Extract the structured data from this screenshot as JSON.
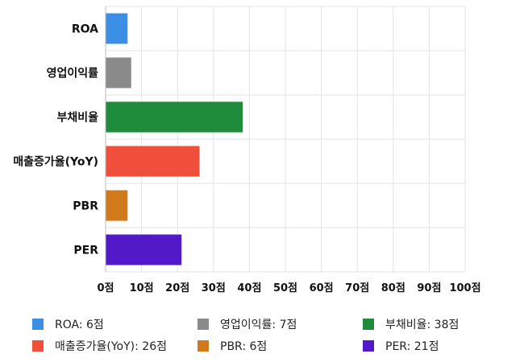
{
  "chart_data": {
    "type": "bar",
    "orientation": "horizontal",
    "categories": [
      "ROA",
      "영업이익률",
      "부채비율",
      "매출증가율(YoY)",
      "PBR",
      "PER"
    ],
    "values": [
      6,
      7,
      38,
      26,
      6,
      21
    ],
    "colors": [
      "#3d8fe6",
      "#8a8a8a",
      "#1e8c3a",
      "#ef4f3b",
      "#d07a1c",
      "#5219c9"
    ],
    "xlim": [
      0,
      100
    ],
    "ticks": [
      0,
      10,
      20,
      30,
      40,
      50,
      60,
      70,
      80,
      90,
      100
    ],
    "tick_labels": [
      "0점",
      "10점",
      "20점",
      "30점",
      "40점",
      "50점",
      "60점",
      "70점",
      "80점",
      "90점",
      "100점"
    ],
    "grid": true,
    "legend_position": "bottom",
    "legend": [
      {
        "label": "ROA: 6점",
        "color": "#3d8fe6"
      },
      {
        "label": "영업이익률: 7점",
        "color": "#8a8a8a"
      },
      {
        "label": "부채비율: 38점",
        "color": "#1e8c3a"
      },
      {
        "label": "매출증가율(YoY): 26점",
        "color": "#ef4f3b"
      },
      {
        "label": "PBR: 6점",
        "color": "#d07a1c"
      },
      {
        "label": "PER: 21점",
        "color": "#5219c9"
      }
    ]
  }
}
